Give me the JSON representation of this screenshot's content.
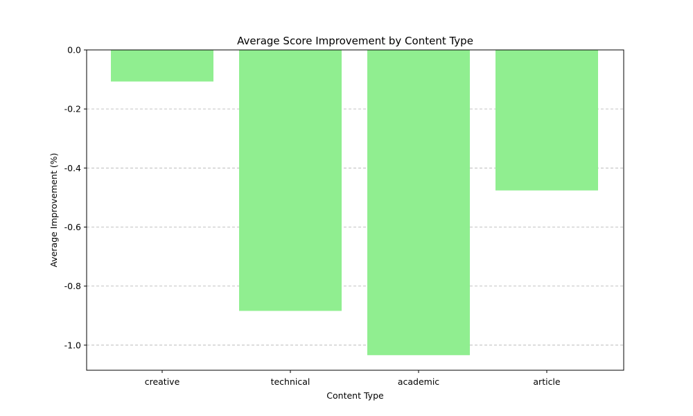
{
  "chart_data": {
    "type": "bar",
    "title": "Average Score Improvement by Content Type",
    "xlabel": "Content Type",
    "ylabel": "Average Improvement (%)",
    "categories": [
      "creative",
      "technical",
      "academic",
      "article"
    ],
    "values": [
      -0.107,
      -0.884,
      -1.034,
      -0.476
    ],
    "ylim": [
      -1.085,
      0.0
    ],
    "yticks": [
      0.0,
      -0.2,
      -0.4,
      -0.6,
      -0.8,
      -1.0
    ],
    "ytick_labels": [
      "0.0",
      "-0.2",
      "-0.4",
      "-0.6",
      "-0.8",
      "-1.0"
    ],
    "grid": "y-dashed",
    "legend": "none",
    "bar_color": "#90ee90",
    "grid_color": "#b0b0b0"
  }
}
